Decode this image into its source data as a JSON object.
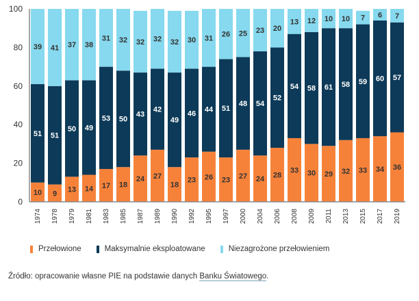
{
  "chart_data": {
    "type": "bar",
    "stacked": true,
    "title": "",
    "xlabel": "",
    "ylabel": "",
    "ylim": [
      0,
      100
    ],
    "yticks": [
      0,
      20,
      40,
      60,
      80,
      100
    ],
    "grid": false,
    "legend_position": "bottom",
    "categories": [
      "1974",
      "1978",
      "1979",
      "1981",
      "1983",
      "1985",
      "1987",
      "1989",
      "1990",
      "1992",
      "1995",
      "1997",
      "2000",
      "2004",
      "2006",
      "2008",
      "2009",
      "2011",
      "2013",
      "2015",
      "2017",
      "2019"
    ],
    "series": [
      {
        "name": "Przełowione",
        "color": "#f6823a",
        "label_color": "#333333",
        "values": [
          10,
          9,
          13,
          14,
          17,
          18,
          24,
          27,
          18,
          23,
          26,
          23,
          27,
          24,
          28,
          33,
          30,
          29,
          32,
          33,
          34,
          36
        ]
      },
      {
        "name": "Maksymalnie eksploatowane",
        "color": "#0d3a58",
        "label_color": "#ffffff",
        "values": [
          51,
          51,
          50,
          49,
          53,
          50,
          43,
          42,
          49,
          46,
          44,
          51,
          48,
          54,
          52,
          54,
          58,
          61,
          58,
          59,
          60,
          57
        ]
      },
      {
        "name": "Niezagrożone przełowieniem",
        "color": "#86d9ee",
        "label_color": "#333333",
        "values": [
          39,
          41,
          37,
          38,
          31,
          32,
          32,
          32,
          32,
          30,
          31,
          26,
          25,
          23,
          20,
          13,
          12,
          10,
          10,
          7,
          6,
          7
        ]
      }
    ]
  },
  "legend": [
    {
      "label": "Przełowione",
      "color": "#f6823a"
    },
    {
      "label": "Maksymalnie eksploatowane",
      "color": "#0d3a58"
    },
    {
      "label": "Niezagrożone przełowieniem",
      "color": "#86d9ee"
    }
  ],
  "source": {
    "prefix": "Źródło: opracowanie własne PIE na podstawie danych ",
    "link_text": "Banku Światowego",
    "suffix": "."
  }
}
